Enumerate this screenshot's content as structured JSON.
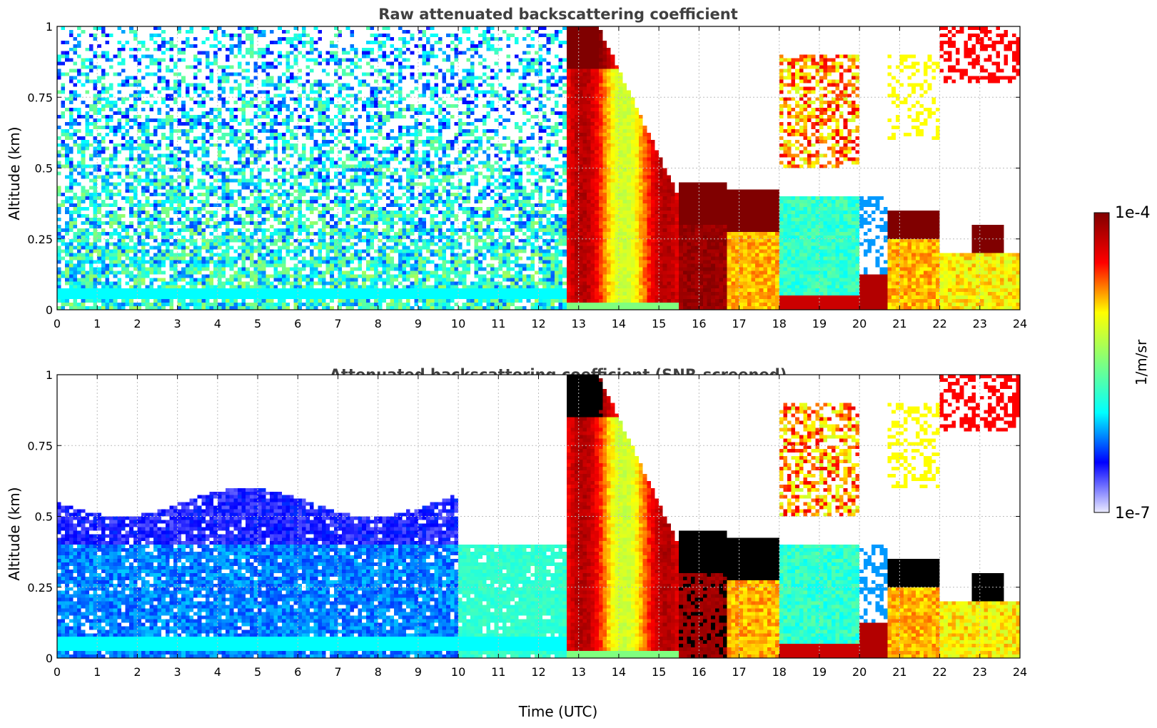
{
  "figure": {
    "panels": [
      {
        "id": "raw",
        "title": "Raw attenuated backscattering coefficient",
        "ylabel": "Altitude (km)",
        "xlabel": ""
      },
      {
        "id": "snr",
        "title": "Attenuated backscattering coefficient (SNR-screened)",
        "ylabel": "Altitude (km)",
        "xlabel": "Time (UTC)"
      }
    ],
    "colorbar": {
      "label": "1/m/sr",
      "max_label": "1e-4",
      "min_label": "1e-7",
      "scale": "log",
      "colormap": "jet",
      "range": [
        1e-07,
        0.0001
      ],
      "stops": [
        "#ebebff",
        "#0000ff",
        "#00ffff",
        "#7fff7f",
        "#ffff00",
        "#ff0000",
        "#800000"
      ]
    }
  },
  "chart_data": [
    {
      "type": "heatmap",
      "title": "Raw attenuated backscattering coefficient",
      "xlabel": "",
      "ylabel": "Altitude (km)",
      "xlim": [
        0,
        24
      ],
      "ylim": [
        0,
        1
      ],
      "x_ticks": [
        0,
        1,
        2,
        3,
        4,
        5,
        6,
        7,
        8,
        9,
        10,
        11,
        12,
        13,
        14,
        15,
        16,
        17,
        18,
        19,
        20,
        21,
        22,
        23,
        24
      ],
      "y_ticks": [
        0,
        0.25,
        0.5,
        0.75,
        1
      ],
      "y_tick_labels": [
        "0",
        "0.25",
        "0.5",
        "0.75",
        "1"
      ],
      "grid": true,
      "z_units": "1/m/sr",
      "z_scale": "log",
      "z_range": [
        1e-07,
        0.0001
      ],
      "features": [
        {
          "time_range": [
            0,
            12.7
          ],
          "altitude_range": [
            0,
            1
          ],
          "description": "noise",
          "approx_value": 3e-07
        },
        {
          "time_range": [
            0,
            12.7
          ],
          "altitude_range": [
            0.04,
            0.07
          ],
          "description": "near-surface band",
          "approx_value": 1e-06
        },
        {
          "time_range": [
            12.7,
            15.5
          ],
          "altitude_range": [
            0,
            1
          ],
          "description": "deep cloud / precipitation",
          "approx_value": 3e-05
        },
        {
          "time_range": [
            15.5,
            16.7
          ],
          "altitude_range": [
            0,
            0.3
          ],
          "description": "dense layer",
          "approx_value": 6e-05
        },
        {
          "time_range": [
            16.7,
            18.0
          ],
          "altitude_range": [
            0.25,
            0.45
          ],
          "description": "cloud layer",
          "approx_value": 0.0001
        },
        {
          "time_range": [
            18.0,
            20.0
          ],
          "altitude_range": [
            0,
            0.4
          ],
          "description": "low scattering layer",
          "approx_value": 2e-06
        },
        {
          "time_range": [
            20.7,
            22.0
          ],
          "altitude_range": [
            0.25,
            0.35
          ],
          "description": "cloud layer",
          "approx_value": 0.0001
        },
        {
          "time_range": [
            22.8,
            23.6
          ],
          "altitude_range": [
            0.2,
            0.3
          ],
          "description": "cloud layer",
          "approx_value": 0.0001
        }
      ]
    },
    {
      "type": "heatmap",
      "title": "Attenuated backscattering coefficient (SNR-screened)",
      "xlabel": "Time (UTC)",
      "ylabel": "Altitude (km)",
      "xlim": [
        0,
        24
      ],
      "ylim": [
        0,
        1
      ],
      "x_ticks": [
        0,
        1,
        2,
        3,
        4,
        5,
        6,
        7,
        8,
        9,
        10,
        11,
        12,
        13,
        14,
        15,
        16,
        17,
        18,
        19,
        20,
        21,
        22,
        23,
        24
      ],
      "y_ticks": [
        0,
        0.25,
        0.5,
        0.75,
        1
      ],
      "y_tick_labels": [
        "0",
        "0.25",
        "0.5",
        "0.75",
        "1"
      ],
      "grid": true,
      "z_units": "1/m/sr",
      "z_scale": "log",
      "z_range": [
        1e-07,
        0.0001
      ],
      "features": [
        {
          "time_range": [
            0,
            10
          ],
          "altitude_range": [
            0,
            0.55
          ],
          "description": "boundary layer aerosol",
          "approx_value": 4e-07
        },
        {
          "time_range": [
            10,
            12.7
          ],
          "altitude_range": [
            0,
            0.4
          ],
          "description": "boundary layer aerosol",
          "approx_value": 1.5e-06
        },
        {
          "time_range": [
            12.7,
            15.5
          ],
          "altitude_range": [
            0,
            1
          ],
          "description": "deep cloud / precipitation",
          "approx_value": 3e-05
        },
        {
          "time_range": [
            15.5,
            16.7
          ],
          "altitude_range": [
            0,
            0.3
          ],
          "description": "dense layer",
          "approx_value": 6e-05
        },
        {
          "time_range": [
            16.7,
            18.0
          ],
          "altitude_range": [
            0.3,
            0.45
          ],
          "description": "saturated cloud layer",
          "approx_value": 0.0001
        },
        {
          "time_range": [
            20.7,
            22.0
          ],
          "altitude_range": [
            0.25,
            0.35
          ],
          "description": "saturated cloud layer",
          "approx_value": 0.0001
        }
      ]
    }
  ]
}
